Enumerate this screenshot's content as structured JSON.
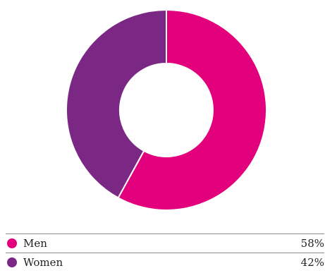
{
  "chart_data": {
    "type": "pie",
    "donut": true,
    "categories": [
      "Men",
      "Women"
    ],
    "values": [
      58,
      42
    ],
    "value_labels": [
      "58%",
      "42%"
    ],
    "colors": [
      "#e3007c",
      "#7b2884"
    ],
    "title": "",
    "legend_position": "bottom"
  }
}
